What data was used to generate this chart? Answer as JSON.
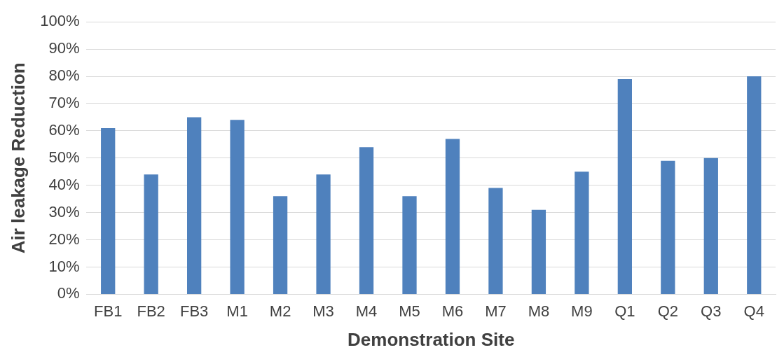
{
  "chart_data": {
    "type": "bar",
    "xlabel": "Demonstration Site",
    "ylabel": "Air leakage Reduction",
    "categories": [
      "FB1",
      "FB2",
      "FB3",
      "M1",
      "M2",
      "M3",
      "M4",
      "M5",
      "M6",
      "M7",
      "M8",
      "M9",
      "Q1",
      "Q2",
      "Q3",
      "Q4"
    ],
    "values": [
      61,
      44,
      65,
      64,
      36,
      44,
      54,
      36,
      57,
      39,
      31,
      45,
      79,
      49,
      50,
      80
    ],
    "color": "#4f81bd",
    "ylim": [
      0,
      100
    ],
    "yticks": [
      {
        "value": 0,
        "label": "0%"
      },
      {
        "value": 10,
        "label": "10%"
      },
      {
        "value": 20,
        "label": "20%"
      },
      {
        "value": 30,
        "label": "30%"
      },
      {
        "value": 40,
        "label": "40%"
      },
      {
        "value": 50,
        "label": "50%"
      },
      {
        "value": 60,
        "label": "60%"
      },
      {
        "value": 70,
        "label": "70%"
      },
      {
        "value": 80,
        "label": "80%"
      },
      {
        "value": 90,
        "label": "90%"
      },
      {
        "value": 100,
        "label": "100%"
      }
    ],
    "grid": "y",
    "legend": false
  }
}
